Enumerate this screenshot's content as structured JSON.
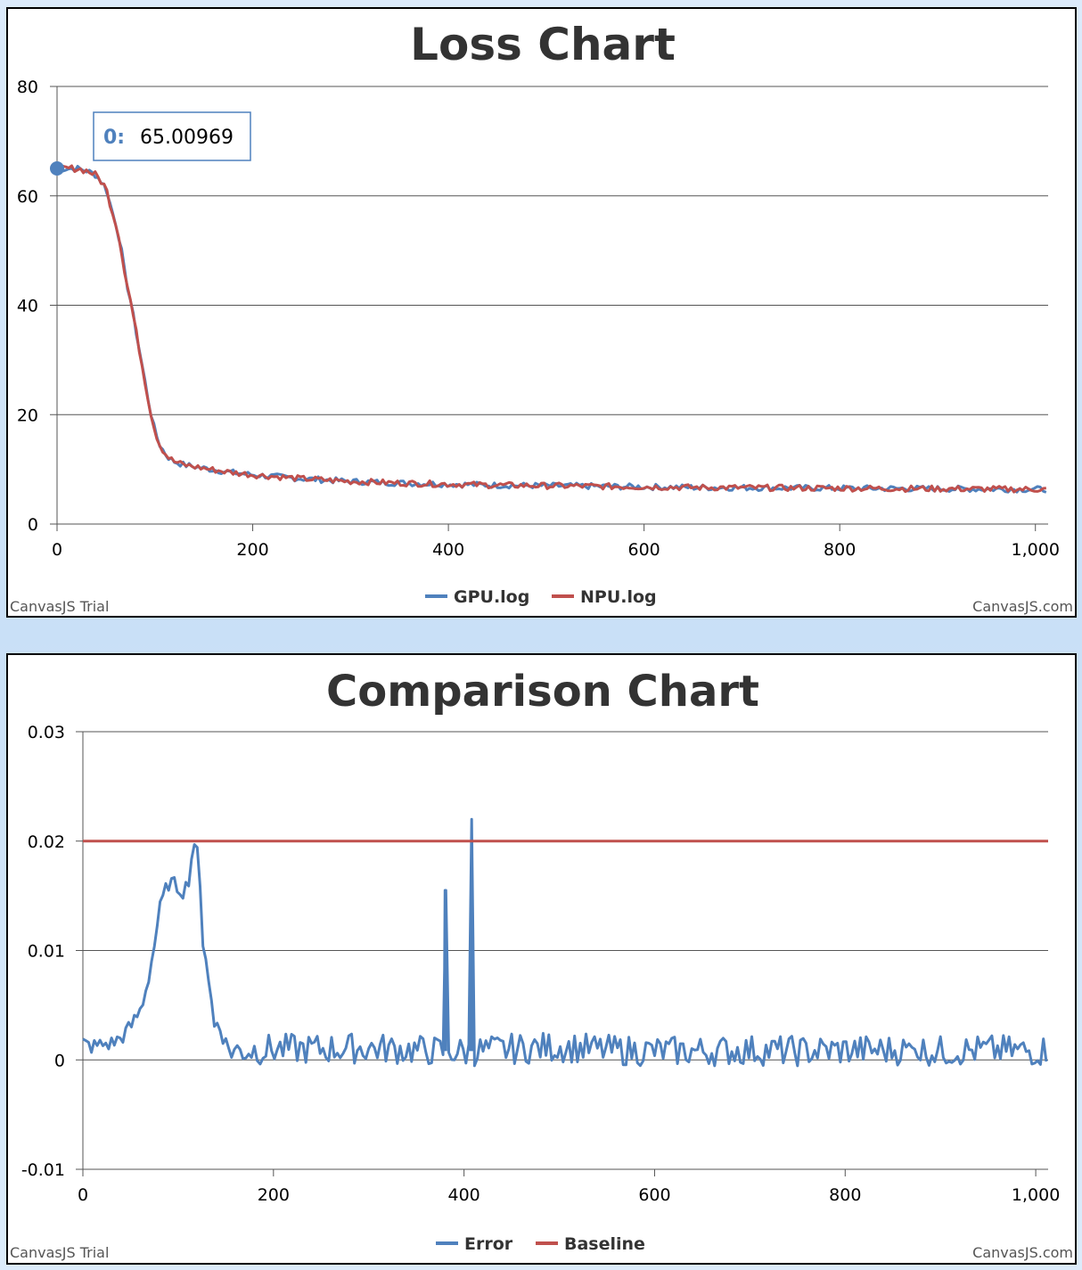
{
  "colors": {
    "series_blue": "#4f81bd",
    "series_red": "#c0504d",
    "gridline": "#555555",
    "title": "#333333"
  },
  "credits": {
    "left": "CanvasJS Trial",
    "right": "CanvasJS.com"
  },
  "chart_data": [
    {
      "type": "line",
      "title": "Loss Chart",
      "xlim": [
        0,
        1013
      ],
      "ylim": [
        0,
        80
      ],
      "x_ticks": [
        "0",
        "200",
        "400",
        "600",
        "800",
        "1,000"
      ],
      "y_ticks": [
        "0",
        "20",
        "40",
        "60",
        "80"
      ],
      "grid": true,
      "legend_position": "bottom",
      "tooltip": {
        "label": "0:",
        "value": "65.00969",
        "x": 0,
        "y": 65.00969
      },
      "series": [
        {
          "name": "GPU.log",
          "color": "#4f81bd",
          "points": [
            [
              0,
              65.01
            ],
            [
              10,
              65
            ],
            [
              20,
              65
            ],
            [
              30,
              64.6
            ],
            [
              40,
              63.8
            ],
            [
              50,
              61.5
            ],
            [
              55,
              58
            ],
            [
              60,
              55
            ],
            [
              65,
              51
            ],
            [
              70,
              45
            ],
            [
              75,
              41
            ],
            [
              80,
              36
            ],
            [
              85,
              31
            ],
            [
              90,
              26
            ],
            [
              95,
              21
            ],
            [
              100,
              17
            ],
            [
              105,
              14.5
            ],
            [
              110,
              13
            ],
            [
              115,
              12
            ],
            [
              120,
              11.4
            ],
            [
              130,
              10.8
            ],
            [
              150,
              10.2
            ],
            [
              175,
              9.5
            ],
            [
              200,
              9
            ],
            [
              250,
              8.3
            ],
            [
              300,
              7.8
            ],
            [
              350,
              7.5
            ],
            [
              400,
              7.3
            ],
            [
              450,
              7.1
            ],
            [
              500,
              7
            ],
            [
              550,
              6.9
            ],
            [
              600,
              6.8
            ],
            [
              650,
              6.7
            ],
            [
              700,
              6.65
            ],
            [
              750,
              6.6
            ],
            [
              800,
              6.55
            ],
            [
              850,
              6.5
            ],
            [
              900,
              6.45
            ],
            [
              950,
              6.4
            ],
            [
              1013,
              6.35
            ]
          ]
        },
        {
          "name": "NPU.log",
          "color": "#c0504d",
          "points": [
            [
              0,
              65.01
            ],
            [
              10,
              65
            ],
            [
              20,
              65
            ],
            [
              30,
              64.6
            ],
            [
              40,
              63.8
            ],
            [
              50,
              61.5
            ],
            [
              55,
              58
            ],
            [
              60,
              55
            ],
            [
              65,
              51
            ],
            [
              70,
              45
            ],
            [
              75,
              41
            ],
            [
              80,
              36
            ],
            [
              85,
              31
            ],
            [
              90,
              26
            ],
            [
              95,
              21
            ],
            [
              100,
              17
            ],
            [
              105,
              14.5
            ],
            [
              110,
              13
            ],
            [
              115,
              12
            ],
            [
              120,
              11.4
            ],
            [
              130,
              10.8
            ],
            [
              150,
              10.2
            ],
            [
              175,
              9.5
            ],
            [
              200,
              9
            ],
            [
              250,
              8.3
            ],
            [
              300,
              7.8
            ],
            [
              350,
              7.5
            ],
            [
              400,
              7.3
            ],
            [
              450,
              7.1
            ],
            [
              500,
              7
            ],
            [
              550,
              6.9
            ],
            [
              600,
              6.8
            ],
            [
              650,
              6.7
            ],
            [
              700,
              6.65
            ],
            [
              750,
              6.6
            ],
            [
              800,
              6.55
            ],
            [
              850,
              6.5
            ],
            [
              900,
              6.45
            ],
            [
              950,
              6.4
            ],
            [
              1013,
              6.35
            ]
          ]
        }
      ]
    },
    {
      "type": "line",
      "title": "Comparison Chart",
      "xlim": [
        0,
        1013
      ],
      "ylim": [
        -0.01,
        0.03
      ],
      "x_ticks": [
        "0",
        "200",
        "400",
        "600",
        "800",
        "1,000"
      ],
      "y_ticks": [
        "-0.01",
        "0",
        "0.01",
        "0.02",
        "0.03"
      ],
      "grid": true,
      "legend_position": "bottom",
      "series": [
        {
          "name": "Error",
          "color": "#4f81bd",
          "points": [
            [
              0,
              0.0015
            ],
            [
              10,
              0.0012
            ],
            [
              20,
              0.0014
            ],
            [
              30,
              0.0015
            ],
            [
              40,
              0.002
            ],
            [
              50,
              0.003
            ],
            [
              60,
              0.0045
            ],
            [
              65,
              0.006
            ],
            [
              70,
              0.008
            ],
            [
              75,
              0.0105
            ],
            [
              80,
              0.0135
            ],
            [
              85,
              0.015
            ],
            [
              90,
              0.0162
            ],
            [
              95,
              0.016
            ],
            [
              100,
              0.0158
            ],
            [
              105,
              0.0155
            ],
            [
              110,
              0.016
            ],
            [
              115,
              0.019
            ],
            [
              118,
              0.0205
            ],
            [
              122,
              0.017
            ],
            [
              126,
              0.011
            ],
            [
              130,
              0.009
            ],
            [
              134,
              0.006
            ],
            [
              138,
              0.003
            ],
            [
              142,
              0.0035
            ],
            [
              146,
              0.0025
            ],
            [
              150,
              0.0012
            ],
            [
              160,
              0.0008
            ],
            [
              175,
              0.0009
            ],
            [
              200,
              0.001
            ],
            [
              250,
              0.001
            ],
            [
              300,
              0.0011
            ],
            [
              350,
              0.0009
            ],
            [
              378,
              0.0008
            ],
            [
              380,
              0.0155
            ],
            [
              382,
              0.0008
            ],
            [
              405,
              0.0007
            ],
            [
              408,
              0.022
            ],
            [
              410,
              0.0008
            ],
            [
              450,
              0.001
            ],
            [
              500,
              0.0012
            ],
            [
              550,
              0.0009
            ],
            [
              600,
              0.0008
            ],
            [
              650,
              0.0008
            ],
            [
              700,
              0.0009
            ],
            [
              750,
              0.0008
            ],
            [
              800,
              0.0009
            ],
            [
              850,
              0.0009
            ],
            [
              870,
              0.0009
            ],
            [
              872,
              0.0035
            ],
            [
              874,
              0.0009
            ],
            [
              900,
              0.0008
            ],
            [
              950,
              0.0009
            ],
            [
              1000,
              0.0008
            ],
            [
              1013,
              0.0009
            ]
          ]
        },
        {
          "name": "Baseline",
          "color": "#c0504d",
          "points": [
            [
              0,
              0.02
            ],
            [
              1013,
              0.02
            ]
          ]
        }
      ]
    }
  ]
}
